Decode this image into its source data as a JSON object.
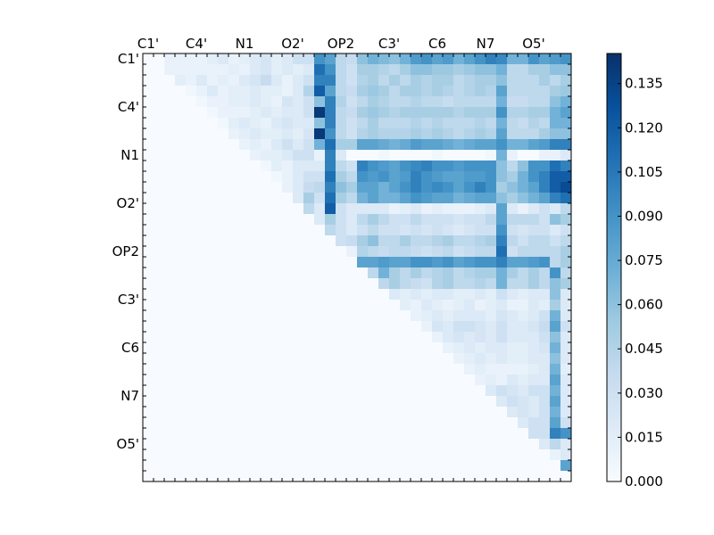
{
  "chart_data": {
    "type": "heatmap",
    "title": "",
    "xlabel": "",
    "ylabel": "",
    "n": 40,
    "tick_labels": [
      "C1'",
      "C4'",
      "N1",
      "O2'",
      "OP2",
      "C3'",
      "C6",
      "N7",
      "O5'"
    ],
    "tick_positions": [
      0,
      4.5,
      9,
      13.5,
      18,
      22.5,
      27,
      31.5,
      36
    ],
    "colorbar": {
      "min": 0.0,
      "max": 0.1452,
      "ticks": [
        "0.000",
        "0.015",
        "0.030",
        "0.045",
        "0.060",
        "0.075",
        "0.090",
        "0.105",
        "0.120",
        "0.135"
      ],
      "colormap": "Blues"
    },
    "matrix_description": "Upper-triangular pairwise values (row < col); lower triangle is 0.",
    "rows": [
      "0 0 0.01 0.01 0.01 0.01 0.015 0.02 0.01 0.015 0.02 0.025 0.015 0.02 0.03 0.03 0.09 0.08 0.04 0.035 0.06 0.07 0.065 0.06 0.07 0.085 0.09 0.08 0.085 0.07 0.08 0.09 0.1 0.095 0.07 0.07 0.09 0.08 0.085 0.09",
      "0 0 0.01 0.01 0.01 0.01 0.01 0.01 0.015 0.01 0.02 0.025 0.015 0.02 0.015 0.02 0.11 0.09 0.04 0.03 0.05 0.05 0.045 0.04 0.05 0.06 0.06 0.055 0.055 0.05 0.055 0.06 0.06 0.07 0.04 0.04 0.05 0.05 0.06 0.06",
      "0 0 0 0.015 0.01 0.02 0.01 0.015 0.01 0.02 0.025 0.035 0.02 0.01 0.02 0.03 0.1 0.1 0.04 0.03 0.045 0.05 0.04 0.05 0.04 0.05 0.045 0.05 0.05 0.04 0.045 0.05 0.05 0.06 0.04 0.04 0.04 0.05 0.04 0.05",
      "0 0 0 0 0.005 0.01 0.02 0.01 0.015 0.015 0.02 0.015 0.015 0.01 0.02 0.045 0.12 0.08 0.04 0.035 0.05 0.055 0.05 0.04 0.05 0.05 0.045 0.05 0.045 0.04 0.045 0.05 0.045 0.08 0.04 0.04 0.04 0.04 0.05 0.055",
      "0 0 0 0 0 0.005 0.01 0.01 0.015 0.015 0.02 0.015 0.01 0.025 0.02 0.03 0.06 0.1 0.045 0.03 0.04 0.05 0.045 0.04 0.04 0.045 0.04 0.04 0.035 0.04 0.04 0.04 0.04 0.07 0.035 0.035 0.04 0.04 0.06 0.07",
      "0 0 0 0 0 0 0.005 0.01 0.01 0.01 0.015 0.02 0.015 0.02 0.02 0.03 0.14 0.1 0.04 0.035 0.05 0.055 0.05 0.045 0.05 0.05 0.05 0.05 0.05 0.045 0.05 0.05 0.05 0.09 0.045 0.045 0.05 0.05 0.07 0.08",
      "0 0 0 0 0 0 0 0.005 0.015 0.02 0.015 0.01 0.02 0.025 0.02 0.02 0.06 0.1 0.04 0.03 0.04 0.05 0.04 0.04 0.04 0.045 0.04 0.045 0.04 0.04 0.04 0.045 0.04 0.07 0.04 0.035 0.045 0.04 0.07 0.07",
      "0 0 0 0 0 0 0 0 0.01 0.015 0.02 0.015 0.015 0.02 0.015 0.025 0.14 0.09 0.04 0.03 0.045 0.05 0.045 0.045 0.045 0.05 0.045 0.05 0.045 0.04 0.045 0.05 0.045 0.08 0.04 0.04 0.04 0.05 0.06 0.06",
      "0 0 0 0 0 0 0 0 0 0.01 0.015 0.01 0.02 0.03 0.02 0.03 0.07 0.11 0.05 0.05 0.08 0.08 0.075 0.07 0.075 0.085 0.08 0.08 0.075 0.07 0.075 0.08 0.08 0.09 0.07 0.07 0.08 0.085 0.1 0.1",
      "0 0 0 0 0 0 0 0 0 0 0.01 0.015 0.015 0.02 0.03 0.03 0.01 0.1 0.02 0 0 0 0.005 0 0 0 0 0.005 0 0 0 0 0.005 0.07 0.01 0 0 0.01 0.01 0.02",
      "0 0 0 0 0 0 0 0 0 0 0 0.005 0.015 0.01 0.02 0.02 0.02 0.1 0.04 0.03 0.1 0.09 0.085 0.08 0.09 0.095 0.1 0.09 0.09 0.085 0.09 0.09 0.09 0.06 0.04 0.06 0.09 0.09 0.11 0.1",
      "0 0 0 0 0 0 0 0 0 0 0 0 0.005 0.01 0.02 0.03 0.03 0.11 0.05 0.04 0.09 0.085 0.09 0.08 0.085 0.1 0.09 0.085 0.08 0.08 0.085 0.085 0.09 0.06 0.05 0.07 0.09 0.1 0.12 0.12",
      "0 0 0 0 0 0 0 0 0 0 0 0 0 0.01 0.02 0.035 0.04 0.1 0.06 0.05 0.08 0.08 0.07 0.08 0.09 0.1 0.09 0.095 0.09 0.08 0.09 0.1 0.09 0.05 0.06 0.07 0.08 0.1 0.12 0.13",
      "0 0 0 0 0 0 0 0 0 0 0 0 0 0 0.02 0.05 0.03 0.11 0.05 0.04 0.07 0.08 0.07 0.07 0.08 0.09 0.085 0.08 0.08 0.07 0.075 0.08 0.08 0.06 0.05 0.06 0.07 0.08 0.1 0.11",
      "0 0 0 0 0 0 0 0 0 0 0 0 0 0 0 0.04 0.02 0.12 0.03 0.02 0.02 0.02 0.02 0.01 0.015 0.02 0.01 0.015 0.01 0.01 0.01 0.015 0.02 0.08 0.02 0.01 0.02 0.03 0.02 0.04",
      "0 0 0 0 0 0 0 0 0 0 0 0 0 0 0 0 0.02 0.05 0.03 0.02 0.04 0.05 0.04 0.03 0.03 0.04 0.03 0.03 0.03 0.025 0.03 0.03 0.04 0.08 0.04 0.04 0.04 0.03 0.06 0.05",
      "0 0 0 0 0 0 0 0 0 0 0 0 0 0 0 0 0 0.04 0.03 0.02 0.03 0.04 0.03 0.03 0.025 0.03 0.025 0.03 0.025 0.02 0.025 0.03 0.03 0.09 0.03 0.025 0.03 0.03 0.02 0.03",
      "0 0 0 0 0 0 0 0 0 0 0 0 0 0 0 0 0 0 0.03 0.035 0.05 0.06 0.04 0.04 0.05 0.04 0.04 0.045 0.05 0.04 0.04 0.045 0.05 0.1 0.04 0.03 0.04 0.04 0.03 0.04",
      "0 0 0 0 0 0 0 0 0 0 0 0 0 0 0 0 0 0 0 0.01 0.045 0.04 0.035 0.04 0.04 0.035 0.03 0.035 0.04 0.03 0.035 0.04 0.04 0.11 0.03 0.04 0.04 0.04 0.04 0.05",
      "0 0 0 0 0 0 0 0 0 0 0 0 0 0 0 0 0 0 0 0 0.08 0.08 0.085 0.08 0.08 0.09 0.09 0.085 0.09 0.08 0.085 0.09 0.09 0.1 0.08 0.08 0.085 0.09 0.04 0.05",
      "0 0 0 0 0 0 0 0 0 0 0 0 0 0 0 0 0 0 0 0 0 0.04 0.07 0.05 0.04 0.05 0.04 0.045 0.05 0.04 0.045 0.05 0.05 0.07 0.05 0.04 0.05 0.04 0.09 0.04",
      "0 0 0 0 0 0 0 0 0 0 0 0 0 0 0 0 0 0 0 0 0 0 0.04 0.05 0.04 0.035 0.03 0.045 0.05 0.04 0.04 0.045 0.04 0.07 0.04 0.04 0.05 0.04 0.06 0.05",
      "0 0 0 0 0 0 0 0 0 0 0 0 0 0 0 0 0 0 0 0 0 0 0 0.02 0.015 0.02 0.015 0.02 0.02 0.015 0.015 0.02 0.015 0.03 0.02 0.015 0.02 0.02 0.06 0.02",
      "0 0 0 0 0 0 0 0 0 0 0 0 0 0 0 0 0 0 0 0 0 0 0 0 0.015 0.01 0.02 0.015 0.01 0.015 0.02 0.01 0.015 0.02 0.01 0.01 0.02 0.015 0.05 0.02",
      "0 0 0 0 0 0 0 0 0 0 0 0 0 0 0 0 0 0 0 0 0 0 0 0 0 0.01 0.015 0.02 0.015 0.02 0.02 0.02 0.015 0.025 0.02 0.015 0.02 0.03 0.07 0.02",
      "0 0 0 0 0 0 0 0 0 0 0 0 0 0 0 0 0 0 0 0 0 0 0 0 0 0 0.01 0.025 0.02 0.03 0.03 0.025 0.02 0.03 0.02 0.02 0.025 0.035 0.08 0.03",
      "0 0 0 0 0 0 0 0 0 0 0 0 0 0 0 0 0 0 0 0 0 0 0 0 0 0 0 0.01 0.02 0.025 0.02 0.025 0.02 0.03 0.02 0.02 0.02 0.03 0.06 0.02",
      "0 0 0 0 0 0 0 0 0 0 0 0 0 0 0 0 0 0 0 0 0 0 0 0 0 0 0 0 0.01 0.015 0.02 0.015 0.02 0.02 0.015 0.015 0.02 0.025 0.07 0.02",
      "0 0 0 0 0 0 0 0 0 0 0 0 0 0 0 0 0 0 0 0 0 0 0 0 0 0 0 0 0 0.01 0.015 0.02 0.015 0.02 0.015 0.015 0.02 0.02 0.06 0.02",
      "0 0 0 0 0 0 0 0 0 0 0 0 0 0 0 0 0 0 0 0 0 0 0 0 0 0 0 0 0 0 0.01 0.015 0.01 0.01 0.01 0.01 0.015 0.02 0.07 0.015",
      "0 0 0 0 0 0 0 0 0 0 0 0 0 0 0 0 0 0 0 0 0 0 0 0 0 0 0 0 0 0 0 0.01 0.015 0.01 0.02 0.015 0.02 0.02 0.08 0.02",
      "0 0 0 0 0 0 0 0 0 0 0 0 0 0 0 0 0 0 0 0 0 0 0 0 0 0 0 0 0 0 0 0 0.02 0.03 0.025 0.02 0.03 0.03 0.07 0.02",
      "0 0 0 0 0 0 0 0 0 0 0 0 0 0 0 0 0 0 0 0 0 0 0 0 0 0 0 0 0 0 0 0 0 0.02 0.03 0.025 0.02 0.03 0.08 0.02",
      "0 0 0 0 0 0 0 0 0 0 0 0 0 0 0 0 0 0 0 0 0 0 0 0 0 0 0 0 0 0 0 0 0 0 0.02 0.025 0.02 0.03 0.07 0.02",
      "0 0 0 0 0 0 0 0 0 0 0 0 0 0 0 0 0 0 0 0 0 0 0 0 0 0 0 0 0 0 0 0 0 0 0 0.02 0.03 0.03 0.08 0.03",
      "0 0 0 0 0 0 0 0 0 0 0 0 0 0 0 0 0 0 0 0 0 0 0 0 0 0 0 0 0 0 0 0 0 0 0 0 0.03 0.03 0.1 0.09",
      "0 0 0 0 0 0 0 0 0 0 0 0 0 0 0 0 0 0 0 0 0 0 0 0 0 0 0 0 0 0 0 0 0 0 0 0 0 0.02 0.04 0.02",
      "0 0 0 0 0 0 0 0 0 0 0 0 0 0 0 0 0 0 0 0 0 0 0 0 0 0 0 0 0 0 0 0 0 0 0 0 0 0 0.01 0.02",
      "0 0 0 0 0 0 0 0 0 0 0 0 0 0 0 0 0 0 0 0 0 0 0 0 0 0 0 0 0 0 0 0 0 0 0 0 0 0 0 0.08",
      "0 0 0 0 0 0 0 0 0 0 0 0 0 0 0 0 0 0 0 0 0 0 0 0 0 0 0 0 0 0 0 0 0 0 0 0 0 0 0 0"
    ]
  }
}
